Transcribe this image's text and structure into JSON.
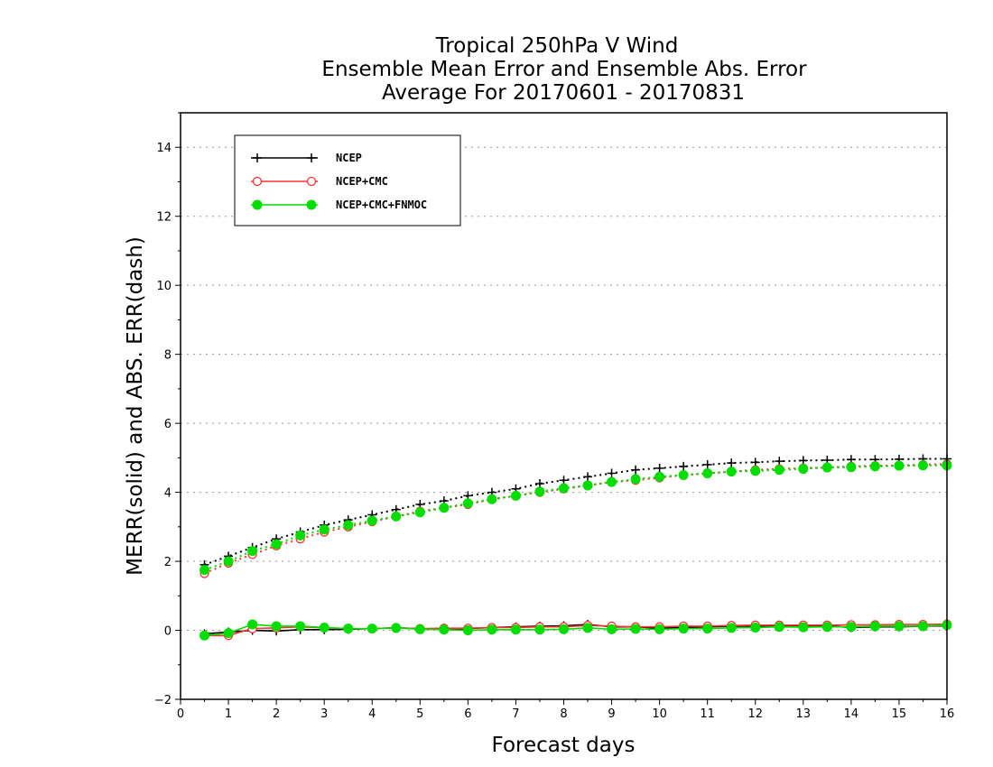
{
  "chart_data": {
    "type": "line",
    "title_lines": [
      "Tropical 250hPa V Wind",
      "Ensemble Mean Error and Ensemble Abs. Error",
      "Average For 20170601 - 20170831"
    ],
    "xlabel": "Forecast days",
    "ylabel": "MERR(solid) and ABS. ERR(dash)",
    "xlim": [
      0,
      16
    ],
    "ylim": [
      -2,
      15
    ],
    "xticks": [
      0,
      1,
      2,
      3,
      4,
      5,
      6,
      7,
      8,
      9,
      10,
      11,
      12,
      13,
      14,
      15,
      16
    ],
    "yticks": [
      -2,
      0,
      2,
      4,
      6,
      8,
      10,
      12,
      14
    ],
    "grid": "horizontal dotted",
    "legend_position": "top-left",
    "x": [
      0.5,
      1,
      1.5,
      2,
      2.5,
      3,
      3.5,
      4,
      4.5,
      5,
      5.5,
      6,
      6.5,
      7,
      7.5,
      8,
      8.5,
      9,
      9.5,
      10,
      10.5,
      11,
      11.5,
      12,
      12.5,
      13,
      13.5,
      14,
      14.5,
      15,
      15.5,
      16
    ],
    "series": [
      {
        "name": "NCEP",
        "color": "#000000",
        "marker": "plus",
        "merr": [
          -0.1,
          -0.05,
          0.0,
          -0.02,
          0.02,
          0.02,
          0.03,
          0.05,
          0.07,
          0.05,
          0.04,
          0.05,
          0.08,
          0.1,
          0.12,
          0.13,
          0.17,
          0.1,
          0.1,
          0.06,
          0.08,
          0.1,
          0.12,
          0.12,
          0.14,
          0.13,
          0.13,
          0.08,
          0.1,
          0.1,
          0.12,
          0.13
        ],
        "abs_err": [
          1.9,
          2.15,
          2.4,
          2.65,
          2.85,
          3.05,
          3.2,
          3.35,
          3.5,
          3.65,
          3.75,
          3.9,
          4.0,
          4.1,
          4.25,
          4.35,
          4.45,
          4.55,
          4.65,
          4.7,
          4.75,
          4.8,
          4.85,
          4.87,
          4.9,
          4.92,
          4.93,
          4.95,
          4.95,
          4.96,
          4.97,
          4.97
        ]
      },
      {
        "name": "NCEP+CMC",
        "color": "#ff3333",
        "marker": "open-circle",
        "merr": [
          -0.15,
          -0.15,
          0.05,
          0.07,
          0.1,
          0.07,
          0.05,
          0.05,
          0.07,
          0.05,
          0.06,
          0.06,
          0.08,
          0.08,
          0.1,
          0.1,
          0.14,
          0.12,
          0.1,
          0.1,
          0.12,
          0.12,
          0.14,
          0.15,
          0.15,
          0.15,
          0.15,
          0.16,
          0.16,
          0.17,
          0.17,
          0.18
        ],
        "abs_err": [
          1.65,
          1.95,
          2.2,
          2.45,
          2.65,
          2.85,
          3.0,
          3.15,
          3.3,
          3.45,
          3.55,
          3.65,
          3.8,
          3.9,
          4.0,
          4.1,
          4.2,
          4.3,
          4.35,
          4.42,
          4.5,
          4.55,
          4.6,
          4.65,
          4.68,
          4.7,
          4.72,
          4.75,
          4.77,
          4.78,
          4.8,
          4.82
        ]
      },
      {
        "name": "NCEP+CMC+FNMOC",
        "color": "#00dd00",
        "marker": "filled-circle",
        "merr": [
          -0.15,
          -0.08,
          0.17,
          0.12,
          0.12,
          0.08,
          0.05,
          0.05,
          0.07,
          0.03,
          0.02,
          0.0,
          0.02,
          0.02,
          0.02,
          0.03,
          0.07,
          0.03,
          0.04,
          0.03,
          0.05,
          0.05,
          0.07,
          0.08,
          0.1,
          0.09,
          0.1,
          0.1,
          0.12,
          0.12,
          0.12,
          0.15
        ],
        "abs_err": [
          1.75,
          2.0,
          2.3,
          2.5,
          2.75,
          2.92,
          3.05,
          3.18,
          3.3,
          3.42,
          3.55,
          3.68,
          3.8,
          3.9,
          4.02,
          4.12,
          4.2,
          4.3,
          4.38,
          4.45,
          4.5,
          4.55,
          4.6,
          4.62,
          4.65,
          4.68,
          4.72,
          4.73,
          4.75,
          4.77,
          4.78,
          4.78
        ]
      }
    ]
  }
}
